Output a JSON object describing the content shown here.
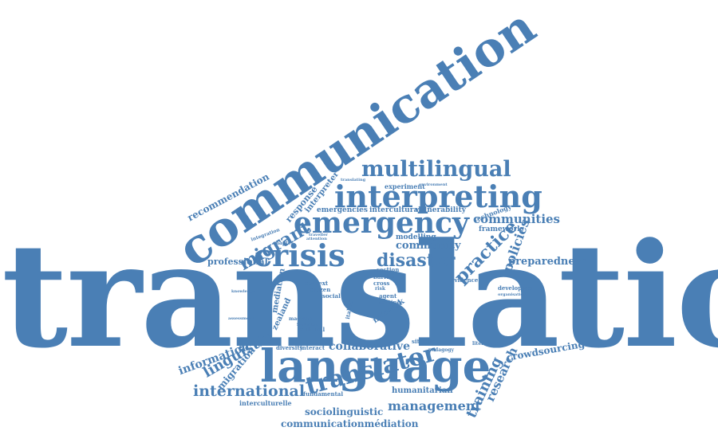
{
  "colors": {
    "word": "#4a7fb5",
    "background": "#ffffff"
  },
  "cloud": {
    "words": [
      "translation",
      "communication",
      "language",
      "interpreting",
      "emergency",
      "crisis",
      "multilingual",
      "translator",
      "disaster",
      "migrant",
      "communities",
      "community",
      "practice",
      "policies",
      "preparedness",
      "collaborative",
      "linguistic",
      "international",
      "management",
      "training",
      "research",
      "information",
      "migration",
      "crowdsourcing",
      "humanitarian",
      "sociolinguistic",
      "communicationmédiation",
      "recommendation",
      "professional",
      "interpreter",
      "response",
      "vulnerability",
      "intercultural",
      "emergencies",
      "framework",
      "modelling",
      "technology",
      "experiment",
      "mediation",
      "zealand",
      "network",
      "interculturelle",
      "fundamental",
      "developing",
      "diversity",
      "interact",
      "cultural",
      "service",
      "context",
      "citizen",
      "social",
      "agent",
      "setting",
      "situation",
      "pedagogy",
      "literature",
      "evidence",
      "section",
      "barrier",
      "cross",
      "italian",
      "chapter",
      "integration",
      "machine",
      "knowledge",
      "assessment",
      "organisation",
      "attention",
      "environment",
      "translating",
      "traveller",
      "risk"
    ]
  }
}
